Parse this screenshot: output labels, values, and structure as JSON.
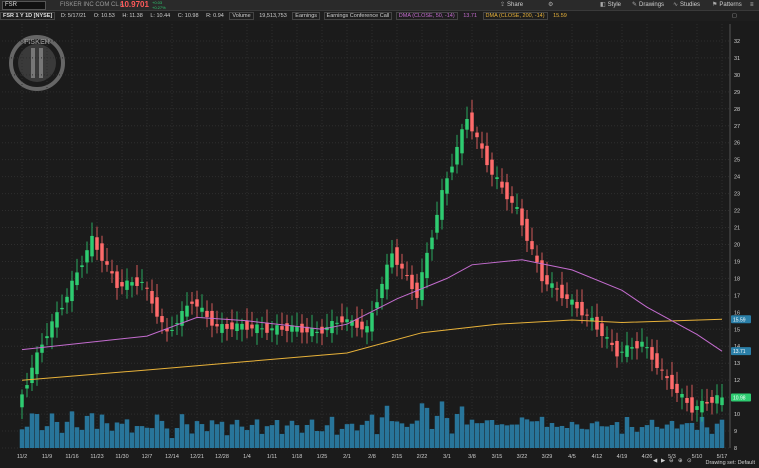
{
  "toolbar": {
    "symbol": "FSR",
    "company": "FISKER INC COM CL A",
    "price": "10.9701",
    "change_lines": [
      "+0.03",
      "+0.27%",
      "+0.1%"
    ],
    "buttons": [
      "Share",
      "Style",
      "Drawings",
      "Studies",
      "Patterns"
    ]
  },
  "infobar": {
    "title": "FSR 1 Y 1D [NYSE]",
    "date": "D: 5/17/21",
    "open": "O: 10.53",
    "high": "H: 11.38",
    "low": "L: 10.44",
    "close": "C: 10.98",
    "range": "R: 0.94",
    "volume_label": "Volume",
    "volume": "19,513,753",
    "earnings": "Earnings",
    "earnings_call": "Earnings Conference Call",
    "dma50": "DMA (CLOSE, 50, -14)",
    "dma50_value": "13.71",
    "dma200": "DMA (CLOSE, 200, -14)",
    "dma200_value": "15.59"
  },
  "status": {
    "drawing_set": "Drawing set: Default"
  },
  "colors": {
    "up": "#2ecc71",
    "down": "#ff6b6b",
    "volume": "#2a7fa8",
    "dma50": "#c46ccf",
    "dma200": "#e8b23a",
    "badge_last": "#2a7fa8"
  },
  "chart_data": {
    "type": "candlestick",
    "ylim": [
      8,
      33
    ],
    "y_ticks": [
      8,
      9,
      10,
      11,
      12,
      13,
      14,
      15,
      16,
      17,
      18,
      19,
      20,
      21,
      22,
      23,
      24,
      25,
      26,
      27,
      28,
      29,
      30,
      31,
      32
    ],
    "x_ticks": [
      "11/2",
      "11/9",
      "11/16",
      "11/23",
      "11/30",
      "12/7",
      "12/14",
      "12/21",
      "12/28",
      "1/4",
      "1/11",
      "1/18",
      "1/25",
      "2/1",
      "2/8",
      "2/15",
      "2/22",
      "3/1",
      "3/8",
      "3/15",
      "3/22",
      "3/29",
      "4/5",
      "4/12",
      "4/19",
      "4/26",
      "5/3",
      "5/10",
      "5/17"
    ],
    "price_badges": {
      "dma200_value": "15.59",
      "dma50_value": "13.71",
      "last_close": "10.98"
    },
    "close_series": [
      {
        "x": "11/2",
        "y": 10.4
      },
      {
        "x": "11/9",
        "y": 14.2
      },
      {
        "x": "11/16",
        "y": 17.0
      },
      {
        "x": "11/23",
        "y": 20.3
      },
      {
        "x": "11/30",
        "y": 17.6
      },
      {
        "x": "12/7",
        "y": 17.8
      },
      {
        "x": "12/14",
        "y": 14.7
      },
      {
        "x": "12/21",
        "y": 16.7
      },
      {
        "x": "12/28",
        "y": 15.1
      },
      {
        "x": "1/4",
        "y": 15.2
      },
      {
        "x": "1/11",
        "y": 15.0
      },
      {
        "x": "1/18",
        "y": 15.1
      },
      {
        "x": "1/25",
        "y": 14.8
      },
      {
        "x": "2/1",
        "y": 15.6
      },
      {
        "x": "2/8",
        "y": 15.0
      },
      {
        "x": "2/15",
        "y": 19.5
      },
      {
        "x": "2/22",
        "y": 17.0
      },
      {
        "x": "3/1",
        "y": 23.0
      },
      {
        "x": "3/8",
        "y": 27.5
      },
      {
        "x": "3/15",
        "y": 24.2
      },
      {
        "x": "3/22",
        "y": 22.0
      },
      {
        "x": "3/29",
        "y": 18.0
      },
      {
        "x": "4/5",
        "y": 16.8
      },
      {
        "x": "4/12",
        "y": 15.5
      },
      {
        "x": "4/19",
        "y": 13.6
      },
      {
        "x": "4/26",
        "y": 14.2
      },
      {
        "x": "5/3",
        "y": 12.0
      },
      {
        "x": "5/10",
        "y": 10.3
      },
      {
        "x": "5/17",
        "y": 10.98
      }
    ],
    "dma50": [
      {
        "x": "11/2",
        "y": 13.8
      },
      {
        "x": "12/7",
        "y": 14.6
      },
      {
        "x": "12/21",
        "y": 15.7
      },
      {
        "x": "1/4",
        "y": 15.5
      },
      {
        "x": "1/25",
        "y": 15.0
      },
      {
        "x": "2/1",
        "y": 15.3
      },
      {
        "x": "2/15",
        "y": 16.8
      },
      {
        "x": "3/1",
        "y": 18.0
      },
      {
        "x": "3/8",
        "y": 18.8
      },
      {
        "x": "3/22",
        "y": 19.1
      },
      {
        "x": "4/5",
        "y": 18.5
      },
      {
        "x": "4/19",
        "y": 17.3
      },
      {
        "x": "4/26",
        "y": 16.3
      },
      {
        "x": "5/10",
        "y": 14.7
      },
      {
        "x": "5/17",
        "y": 13.71
      }
    ],
    "dma200": [
      {
        "x": "11/2",
        "y": 12.0
      },
      {
        "x": "12/7",
        "y": 12.6
      },
      {
        "x": "1/4",
        "y": 13.1
      },
      {
        "x": "2/1",
        "y": 13.6
      },
      {
        "x": "2/22",
        "y": 14.8
      },
      {
        "x": "3/15",
        "y": 15.3
      },
      {
        "x": "4/5",
        "y": 15.55
      },
      {
        "x": "4/19",
        "y": 15.4
      },
      {
        "x": "5/17",
        "y": 15.59
      }
    ]
  }
}
